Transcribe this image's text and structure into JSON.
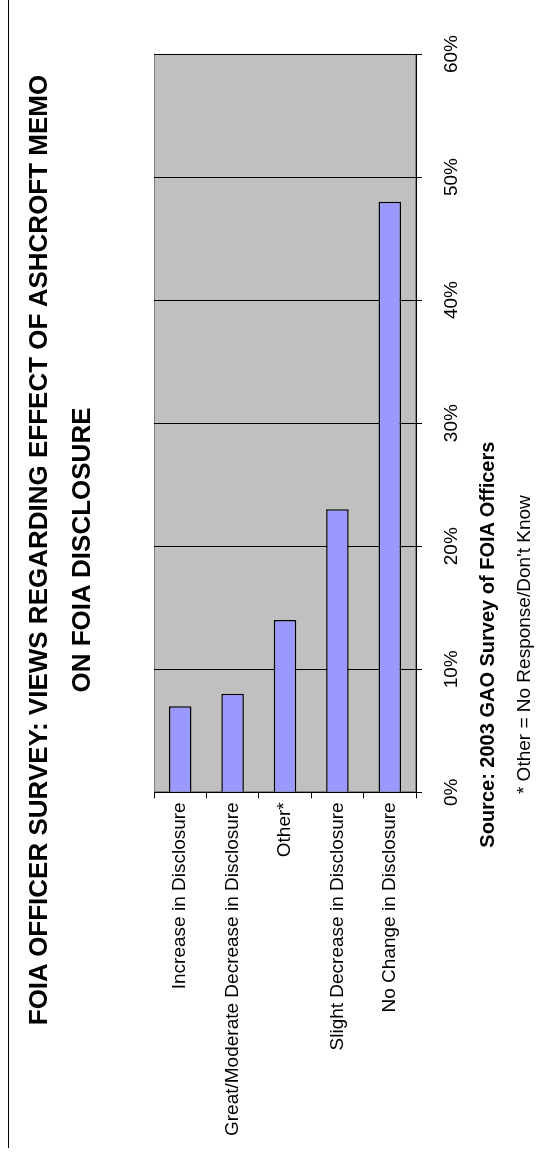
{
  "chart_data": {
    "type": "bar",
    "title": "FOIA OFFICER SURVEY: VIEWS REGARDING EFFECT OF ASHCROFT MEMO ON FOIA DISCLOSURE",
    "ylabel": "Source: 2003 GAO Survey of FOIA Officers",
    "annotations": [
      "* Other = No Response/Don't Know"
    ],
    "categories": [
      "Increase in Disclosure",
      "Great/Moderate Decrease in Disclosure",
      "Other*",
      "Slight Decrease in Disclosure",
      "No Change in Disclosure"
    ],
    "values": [
      7,
      8,
      14,
      23,
      48
    ],
    "color": "#9999ff",
    "ylim": [
      0,
      60
    ],
    "yticks": [
      {
        "value": 0,
        "label": "0%"
      },
      {
        "value": 10,
        "label": "10%"
      },
      {
        "value": 20,
        "label": "20%"
      },
      {
        "value": 30,
        "label": "30%"
      },
      {
        "value": 40,
        "label": "40%"
      },
      {
        "value": 50,
        "label": "50%"
      },
      {
        "value": 60,
        "label": "60%"
      }
    ],
    "grid": "y",
    "legend": false
  }
}
